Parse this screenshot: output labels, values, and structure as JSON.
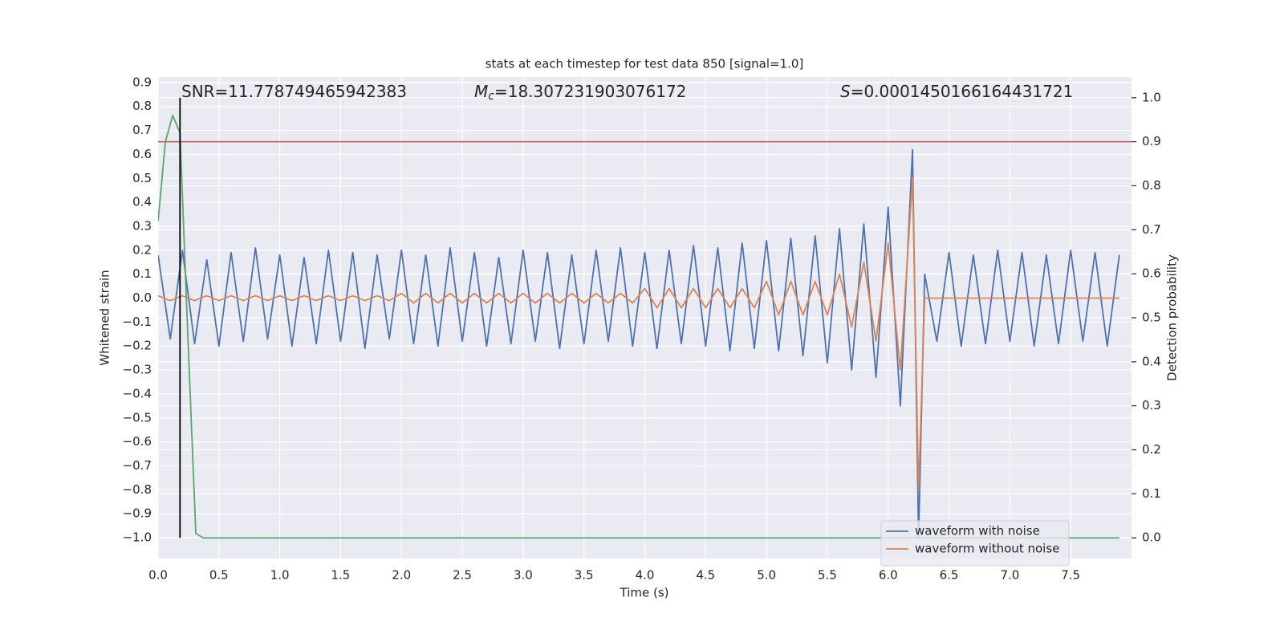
{
  "chart_data": {
    "type": "line",
    "title": "stats at each timestep for test data 850 [signal=1.0]",
    "xlabel": "Time (s)",
    "ylabel": "Whitened strain",
    "y2label": "Detection probability",
    "xlim": [
      0,
      8.0
    ],
    "ylim": [
      -1.087,
      0.923
    ],
    "y2lim": [
      -0.047,
      1.047
    ],
    "grid": true,
    "legend": "lower right",
    "xticks": [
      {
        "value": 0,
        "label": "0.0"
      },
      {
        "value": 0.5,
        "label": "0.5"
      },
      {
        "value": 1,
        "label": "1.0"
      },
      {
        "value": 1.5,
        "label": "1.5"
      },
      {
        "value": 2,
        "label": "2.0"
      },
      {
        "value": 2.5,
        "label": "2.5"
      },
      {
        "value": 3,
        "label": "3.0"
      },
      {
        "value": 3.5,
        "label": "3.5"
      },
      {
        "value": 4,
        "label": "4.0"
      },
      {
        "value": 4.5,
        "label": "4.5"
      },
      {
        "value": 5,
        "label": "5.0"
      },
      {
        "value": 5.5,
        "label": "5.5"
      },
      {
        "value": 6,
        "label": "6.0"
      },
      {
        "value": 6.5,
        "label": "6.5"
      },
      {
        "value": 7,
        "label": "7.0"
      },
      {
        "value": 7.5,
        "label": "7.5"
      }
    ],
    "yticks": [
      {
        "value": -1.0,
        "label": "−1.0"
      },
      {
        "value": -0.9,
        "label": "−0.9"
      },
      {
        "value": -0.8,
        "label": "−0.8"
      },
      {
        "value": -0.7,
        "label": "−0.7"
      },
      {
        "value": -0.6,
        "label": "−0.6"
      },
      {
        "value": -0.5,
        "label": "−0.5"
      },
      {
        "value": -0.4,
        "label": "−0.4"
      },
      {
        "value": -0.3,
        "label": "−0.3"
      },
      {
        "value": -0.2,
        "label": "−0.2"
      },
      {
        "value": -0.1,
        "label": "−0.1"
      },
      {
        "value": 0,
        "label": "0.0"
      },
      {
        "value": 0.1,
        "label": "0.1"
      },
      {
        "value": 0.2,
        "label": "0.2"
      },
      {
        "value": 0.3,
        "label": "0.3"
      },
      {
        "value": 0.4,
        "label": "0.4"
      },
      {
        "value": 0.5,
        "label": "0.5"
      },
      {
        "value": 0.6,
        "label": "0.6"
      },
      {
        "value": 0.7,
        "label": "0.7"
      },
      {
        "value": 0.8,
        "label": "0.8"
      },
      {
        "value": 0.9,
        "label": "0.9"
      }
    ],
    "y2ticks": [
      {
        "value": 0,
        "label": "0.0"
      },
      {
        "value": 0.1,
        "label": "0.1"
      },
      {
        "value": 0.2,
        "label": "0.2"
      },
      {
        "value": 0.3,
        "label": "0.3"
      },
      {
        "value": 0.4,
        "label": "0.4"
      },
      {
        "value": 0.5,
        "label": "0.5"
      },
      {
        "value": 0.6,
        "label": "0.6"
      },
      {
        "value": 0.7,
        "label": "0.7"
      },
      {
        "value": 0.8,
        "label": "0.8"
      },
      {
        "value": 0.9,
        "label": "0.9"
      },
      {
        "value": 1,
        "label": "1.0"
      }
    ],
    "x": [
      0.0,
      0.1,
      0.2,
      0.3,
      0.4,
      0.5,
      0.6,
      0.7,
      0.8,
      0.9,
      1.0,
      1.1,
      1.2,
      1.3,
      1.4,
      1.5,
      1.6,
      1.7,
      1.8,
      1.9,
      2.0,
      2.1,
      2.2,
      2.3,
      2.4,
      2.5,
      2.6,
      2.7,
      2.8,
      2.9,
      3.0,
      3.1,
      3.2,
      3.3,
      3.4,
      3.5,
      3.6,
      3.7,
      3.8,
      3.9,
      4.0,
      4.1,
      4.2,
      4.3,
      4.4,
      4.5,
      4.6,
      4.7,
      4.8,
      4.9,
      5.0,
      5.1,
      5.2,
      5.3,
      5.4,
      5.5,
      5.6,
      5.7,
      5.8,
      5.9,
      6.0,
      6.1,
      6.2,
      6.25,
      6.3,
      6.4,
      6.5,
      6.6,
      6.7,
      6.8,
      6.9,
      7.0,
      7.1,
      7.2,
      7.3,
      7.4,
      7.5,
      7.6,
      7.7,
      7.8,
      7.9
    ],
    "series": [
      {
        "name": "waveform with noise",
        "color": "#4c72b0",
        "values": [
          0.18,
          -0.17,
          0.2,
          -0.19,
          0.16,
          -0.2,
          0.19,
          -0.18,
          0.21,
          -0.17,
          0.18,
          -0.2,
          0.17,
          -0.19,
          0.2,
          -0.18,
          0.19,
          -0.21,
          0.18,
          -0.17,
          0.2,
          -0.19,
          0.18,
          -0.2,
          0.21,
          -0.18,
          0.19,
          -0.2,
          0.17,
          -0.19,
          0.2,
          -0.18,
          0.19,
          -0.21,
          0.18,
          -0.19,
          0.2,
          -0.18,
          0.21,
          -0.2,
          0.19,
          -0.21,
          0.2,
          -0.19,
          0.22,
          -0.2,
          0.21,
          -0.22,
          0.23,
          -0.21,
          0.24,
          -0.22,
          0.25,
          -0.24,
          0.26,
          -0.27,
          0.29,
          -0.3,
          0.31,
          -0.33,
          0.38,
          -0.45,
          0.62,
          -1.0,
          0.1,
          -0.18,
          0.19,
          -0.2,
          0.18,
          -0.19,
          0.2,
          -0.18,
          0.19,
          -0.2,
          0.18,
          -0.19,
          0.2,
          -0.18,
          0.19,
          -0.2,
          0.18
        ]
      },
      {
        "name": "waveform without noise",
        "color": "#dd8452",
        "values": [
          0.01,
          -0.01,
          0.01,
          -0.01,
          0.01,
          -0.01,
          0.01,
          -0.01,
          0.01,
          -0.01,
          0.01,
          -0.01,
          0.01,
          -0.01,
          0.01,
          -0.01,
          0.01,
          -0.01,
          0.01,
          -0.01,
          0.02,
          -0.02,
          0.02,
          -0.02,
          0.02,
          -0.02,
          0.02,
          -0.02,
          0.02,
          -0.02,
          0.02,
          -0.02,
          0.02,
          -0.02,
          0.02,
          -0.02,
          0.02,
          -0.02,
          0.02,
          -0.02,
          0.04,
          -0.04,
          0.04,
          -0.04,
          0.04,
          -0.04,
          0.04,
          -0.04,
          0.04,
          -0.04,
          0.07,
          -0.07,
          0.07,
          -0.07,
          0.07,
          -0.07,
          0.1,
          -0.12,
          0.15,
          -0.18,
          0.23,
          -0.3,
          0.5,
          -0.8,
          0,
          0,
          0,
          0,
          0,
          0,
          0,
          0,
          0,
          0,
          0,
          0,
          0,
          0,
          0,
          0,
          0
        ]
      },
      {
        "color": "#55a868",
        "axis": "y2",
        "x": [
          0,
          0.06,
          0.12,
          0.18,
          0.24,
          0.31,
          0.37,
          7.9
        ],
        "values": [
          0.72,
          0.9,
          0.96,
          0.92,
          0.49,
          0.01,
          0,
          0
        ]
      }
    ],
    "threshold": {
      "y2": 0.9,
      "color": "#c44e52"
    },
    "marker_line": {
      "x": 0.18,
      "y2": [
        0,
        1
      ],
      "color": "#000000"
    },
    "annotations": [
      {
        "text": "SNR=11.778749465942383"
      },
      {
        "symbol": "M",
        "subscript": "c",
        "text": "=18.307231903076172"
      },
      {
        "symbol": "S",
        "text": "=0.0001450166164431721"
      }
    ]
  }
}
